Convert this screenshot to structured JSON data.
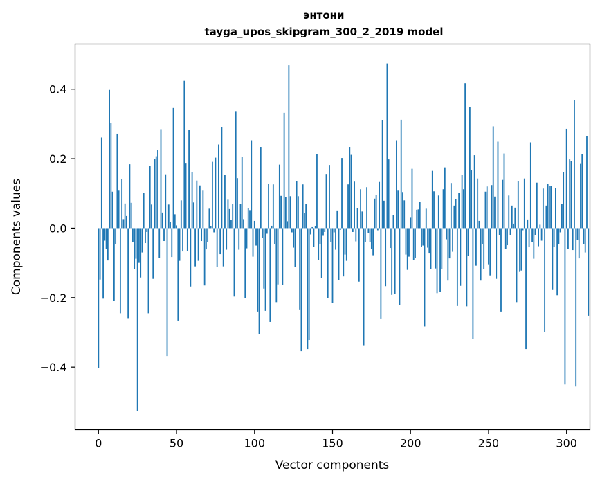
{
  "chart_data": {
    "type": "bar",
    "title_line1": "энтони",
    "title_line2": "tayga_upos_skipgram_300_2_2019 model",
    "xlabel": "Vector components",
    "ylabel": "Components values",
    "xlim": [
      -15,
      315
    ],
    "ylim": [
      -0.58,
      0.53
    ],
    "xticks": [
      0,
      50,
      100,
      150,
      200,
      250,
      300
    ],
    "xtick_labels": [
      "0",
      "50",
      "100",
      "150",
      "200",
      "250",
      "300"
    ],
    "yticks": [
      -0.4,
      -0.2,
      0.0,
      0.2,
      0.4
    ],
    "ytick_labels": [
      "−0.4",
      "−0.2",
      "0.0",
      "0.2",
      "0.4"
    ],
    "bar_color": "#1f77b4",
    "values": [
      -0.403,
      -0.148,
      0.261,
      -0.203,
      -0.036,
      -0.059,
      -0.093,
      0.398,
      0.303,
      0.105,
      -0.21,
      -0.046,
      0.272,
      0.108,
      -0.245,
      0.142,
      0.026,
      0.071,
      0.035,
      -0.259,
      0.184,
      0.073,
      -0.039,
      -0.117,
      -0.088,
      -0.526,
      -0.1,
      -0.142,
      -0.07,
      0.101,
      -0.043,
      -0.011,
      -0.245,
      0.179,
      0.068,
      -0.146,
      0.2,
      0.207,
      0.226,
      -0.085,
      0.285,
      0.045,
      -0.037,
      0.155,
      -0.368,
      0.068,
      0.017,
      -0.083,
      0.346,
      0.04,
      0.008,
      -0.266,
      -0.094,
      0.08,
      -0.067,
      0.424,
      0.186,
      -0.065,
      0.283,
      -0.168,
      0.161,
      0.074,
      -0.11,
      0.137,
      -0.094,
      0.123,
      -0.037,
      0.108,
      -0.165,
      -0.061,
      -0.039,
      0.056,
      0.006,
      0.191,
      -0.012,
      0.203,
      -0.111,
      0.241,
      -0.075,
      0.29,
      -0.11,
      0.153,
      -0.062,
      0.082,
      0.055,
      0.024,
      0.07,
      -0.197,
      0.335,
      0.144,
      -0.062,
      0.069,
      0.206,
      0.026,
      -0.202,
      -0.058,
      0.058,
      0.052,
      0.253,
      -0.082,
      0.021,
      -0.05,
      -0.24,
      -0.304,
      0.234,
      -0.028,
      -0.174,
      -0.238,
      -0.016,
      0.127,
      -0.27,
      0.007,
      0.126,
      -0.045,
      -0.213,
      -0.162,
      0.183,
      0.093,
      -0.164,
      0.332,
      0.09,
      0.02,
      0.469,
      0.092,
      -0.012,
      -0.056,
      -0.111,
      0.135,
      0.092,
      -0.234,
      -0.354,
      0.126,
      0.044,
      0.069,
      -0.348,
      -0.322,
      -0.018,
      0.003,
      -0.054,
      0.006,
      0.214,
      -0.092,
      -0.045,
      -0.143,
      -0.022,
      -0.011,
      0.156,
      -0.201,
      0.182,
      -0.039,
      -0.216,
      -0.012,
      -0.062,
      0.051,
      -0.149,
      -0.005,
      0.202,
      -0.139,
      -0.076,
      -0.094,
      0.126,
      0.234,
      0.211,
      -0.011,
      0.134,
      -0.038,
      0.057,
      -0.154,
      0.112,
      0.048,
      -0.337,
      -0.039,
      0.118,
      -0.014,
      -0.04,
      -0.059,
      -0.078,
      0.085,
      0.095,
      -0.006,
      0.133,
      -0.26,
      0.31,
      0.079,
      -0.167,
      0.474,
      0.198,
      -0.057,
      -0.192,
      0.038,
      -0.19,
      0.253,
      0.108,
      -0.221,
      0.312,
      0.104,
      0.08,
      -0.076,
      -0.12,
      -0.082,
      0.03,
      0.171,
      -0.091,
      -0.085,
      0.053,
      0.054,
      0.076,
      -0.054,
      -0.05,
      -0.283,
      0.056,
      -0.056,
      -0.073,
      -0.118,
      0.165,
      0.106,
      -0.116,
      -0.187,
      0.094,
      -0.184,
      -0.117,
      0.112,
      0.175,
      -0.032,
      -0.151,
      -0.087,
      0.13,
      -0.068,
      0.065,
      0.084,
      -0.224,
      0.101,
      -0.166,
      0.153,
      0.112,
      0.417,
      -0.225,
      -0.079,
      0.348,
      0.167,
      -0.318,
      0.21,
      -0.108,
      0.143,
      0.021,
      -0.151,
      -0.046,
      -0.118,
      0.105,
      0.12,
      -0.104,
      -0.136,
      0.124,
      0.293,
      0.091,
      -0.146,
      0.249,
      -0.021,
      -0.24,
      0.139,
      0.215,
      -0.059,
      -0.049,
      0.094,
      -0.019,
      0.065,
      0.013,
      0.059,
      -0.213,
      0.135,
      -0.126,
      -0.122,
      -0.006,
      0.143,
      -0.348,
      0.025,
      -0.055,
      0.247,
      -0.039,
      -0.088,
      -0.019,
      0.131,
      -0.052,
      0.01,
      -0.036,
      0.114,
      -0.299,
      0.065,
      0.127,
      0.121,
      0.121,
      -0.178,
      -0.054,
      0.116,
      -0.193,
      -0.045,
      -0.012,
      0.07,
      0.161,
      -0.45,
      0.286,
      -0.06,
      0.198,
      0.194,
      -0.063,
      0.368,
      -0.456,
      -0.034,
      -0.087,
      0.185,
      0.214,
      -0.046,
      -0.07,
      0.265,
      -0.252
    ]
  }
}
